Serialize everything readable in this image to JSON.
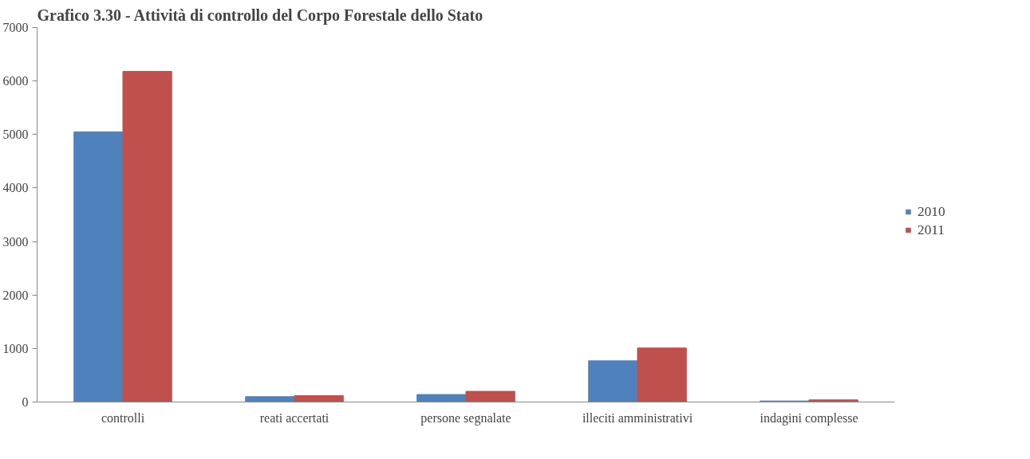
{
  "chart_data": {
    "type": "bar",
    "title": "Grafico 3.30 - Attività di controllo del Corpo Forestale dello Stato",
    "categories": [
      "controlli",
      "reati accertati",
      "persone segnalate",
      "illeciti amministrativi",
      "indagini complesse"
    ],
    "series": [
      {
        "name": "2010",
        "color": "#4f81bd",
        "values": [
          5050,
          100,
          140,
          770,
          20
        ]
      },
      {
        "name": "2011",
        "color": "#c0504d",
        "values": [
          6180,
          120,
          200,
          1010,
          40
        ]
      }
    ],
    "ylim": [
      0,
      7000
    ],
    "yticks": [
      0,
      1000,
      2000,
      3000,
      4000,
      5000,
      6000,
      7000
    ],
    "grid": false,
    "legend": "right"
  }
}
